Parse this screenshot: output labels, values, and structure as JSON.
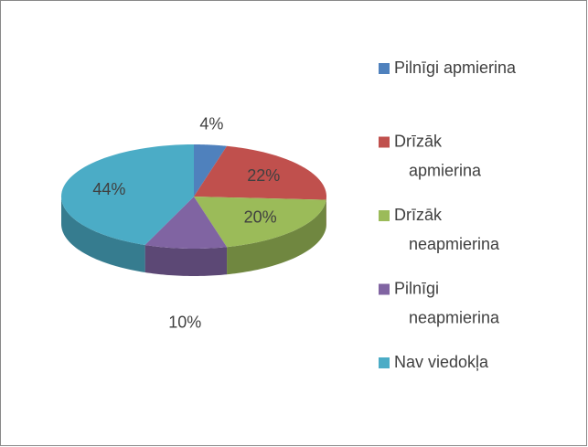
{
  "chart_data": {
    "type": "pie",
    "categories": [
      "Pilnīgi apmierina",
      "Drīzāk apmierina",
      "Drīzāk neapmierina",
      "Pilnīgi neapmierina",
      "Nav viedokļa"
    ],
    "values": [
      4,
      22,
      20,
      10,
      44
    ],
    "value_labels": [
      "4%",
      "22%",
      "20%",
      "10%",
      "44%"
    ],
    "colors": [
      "#4f81bd",
      "#c0504d",
      "#9bbb59",
      "#8064a2",
      "#4bacc6"
    ],
    "legend": "right"
  }
}
